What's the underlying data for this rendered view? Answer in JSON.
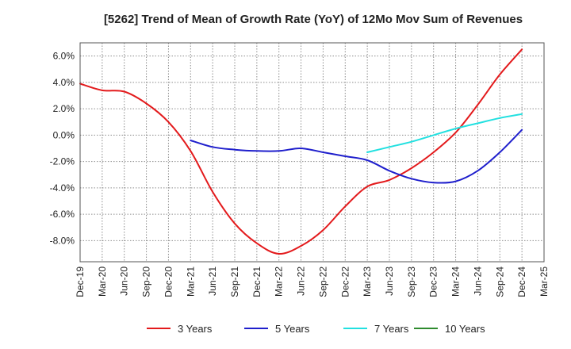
{
  "chart_data": {
    "type": "line",
    "title": "[5262]  Trend of Mean of Growth Rate (YoY) of 12Mo Mov Sum of Revenues",
    "xlabel": "",
    "ylabel": "",
    "ylim": [
      -9.6,
      7.0
    ],
    "yticks": [
      6.0,
      4.0,
      2.0,
      0.0,
      -2.0,
      -4.0,
      -6.0,
      -8.0
    ],
    "ytick_labels": [
      "6.0%",
      "4.0%",
      "2.0%",
      "0.0%",
      "-2.0%",
      "-4.0%",
      "-6.0%",
      "-8.0%"
    ],
    "categories": [
      "Dec-19",
      "Mar-20",
      "Jun-20",
      "Sep-20",
      "Dec-20",
      "Mar-21",
      "Jun-21",
      "Sep-21",
      "Dec-21",
      "Mar-22",
      "Jun-22",
      "Sep-22",
      "Dec-22",
      "Mar-23",
      "Jun-23",
      "Sep-23",
      "Dec-23",
      "Mar-24",
      "Jun-24",
      "Sep-24",
      "Dec-24",
      "Mar-25"
    ],
    "grid": true,
    "legend_position": "bottom",
    "series": [
      {
        "name": "3 Years",
        "color": "#e31a1c",
        "values": [
          3.9,
          3.4,
          3.3,
          2.4,
          1.0,
          -1.2,
          -4.3,
          -6.7,
          -8.2,
          -9.0,
          -8.4,
          -7.2,
          -5.4,
          -3.9,
          -3.4,
          -2.5,
          -1.3,
          0.2,
          2.3,
          4.6,
          6.5,
          null
        ]
      },
      {
        "name": "5 Years",
        "color": "#1f1fcc",
        "values": [
          null,
          null,
          null,
          null,
          null,
          -0.4,
          -0.9,
          -1.1,
          -1.2,
          -1.2,
          -1.0,
          -1.3,
          -1.6,
          -1.9,
          -2.7,
          -3.3,
          -3.6,
          -3.5,
          -2.7,
          -1.3,
          0.4,
          null
        ]
      },
      {
        "name": "7 Years",
        "color": "#22e0e0",
        "values": [
          null,
          null,
          null,
          null,
          null,
          null,
          null,
          null,
          null,
          null,
          null,
          null,
          null,
          -1.3,
          -0.9,
          -0.5,
          0.0,
          0.5,
          0.9,
          1.3,
          1.6,
          null
        ]
      },
      {
        "name": "10 Years",
        "color": "#2e8b2e",
        "values": [
          null,
          null,
          null,
          null,
          null,
          null,
          null,
          null,
          null,
          null,
          null,
          null,
          null,
          null,
          null,
          null,
          null,
          null,
          null,
          null,
          null,
          null
        ]
      }
    ]
  }
}
